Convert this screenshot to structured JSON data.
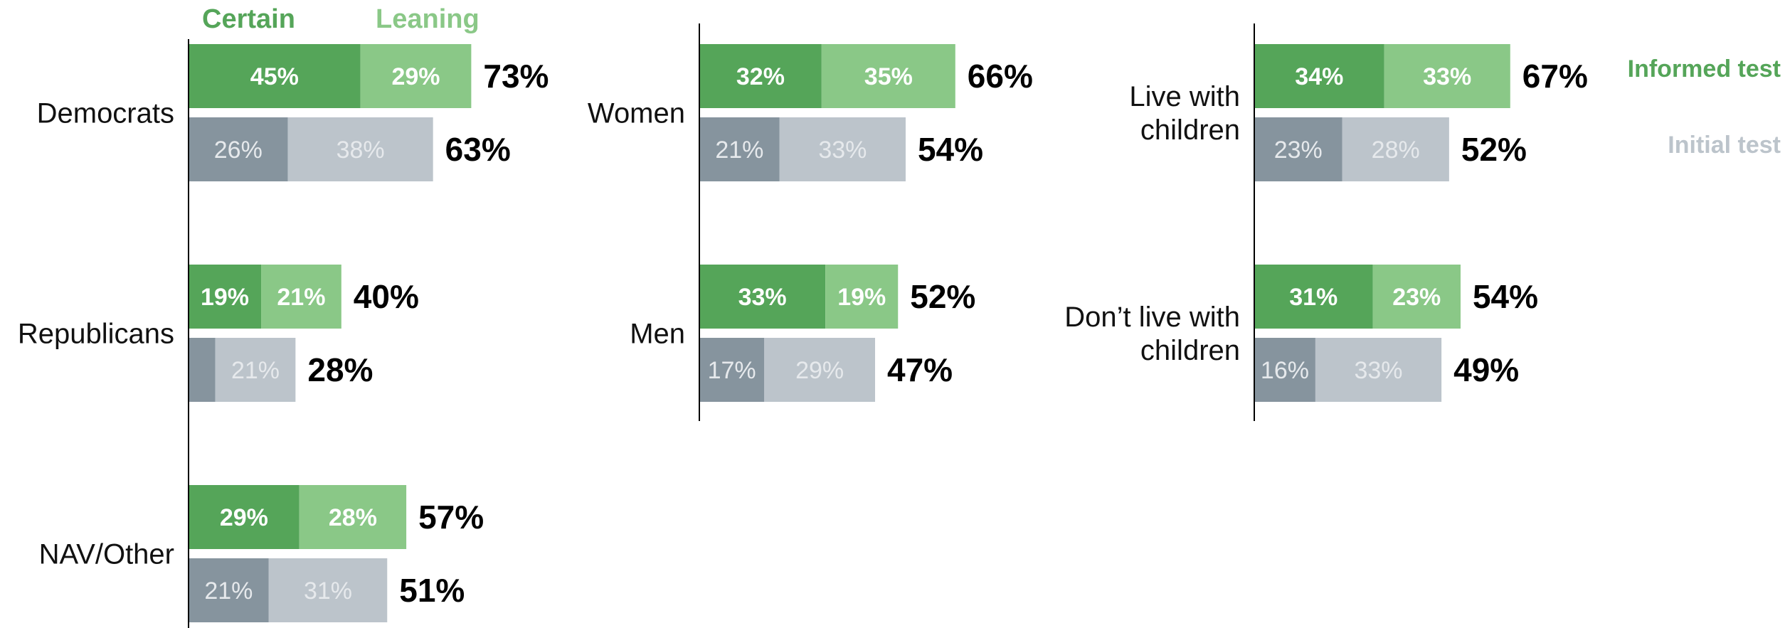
{
  "legend": {
    "certain": "Certain",
    "leaning": "Leaning",
    "informed": "Informed test",
    "initial": "Initial test"
  },
  "colors": {
    "certain": "#55a559",
    "leaning": "#8ac887",
    "initial_certain": "#86949e",
    "initial_leaning": "#bcc4cb",
    "informed_label": "#55a559",
    "initial_label": "#bcc4cb",
    "axis": "#000000"
  },
  "chart_data": {
    "type": "bar",
    "orientation": "horizontal",
    "stacked": true,
    "xlim": [
      0,
      100
    ],
    "series_names": [
      "Certain",
      "Leaning"
    ],
    "tests": [
      "Informed test",
      "Initial test"
    ],
    "panels": [
      {
        "groups": [
          {
            "label": "Democrats",
            "informed": {
              "certain": 45,
              "leaning": 29,
              "total": "73%",
              "certain_label": "45%",
              "leaning_label": "29%"
            },
            "initial": {
              "certain": 26,
              "leaning": 38,
              "total": "63%",
              "certain_label": "26%",
              "leaning_label": "38%"
            }
          },
          {
            "label": "Republicans",
            "informed": {
              "certain": 19,
              "leaning": 21,
              "total": "40%",
              "certain_label": "19%",
              "leaning_label": "21%"
            },
            "initial": {
              "certain": 7,
              "leaning": 21,
              "total": "28%",
              "certain_label": "",
              "leaning_label": "21%"
            }
          },
          {
            "label": "NAV/Other",
            "informed": {
              "certain": 29,
              "leaning": 28,
              "total": "57%",
              "certain_label": "29%",
              "leaning_label": "28%"
            },
            "initial": {
              "certain": 21,
              "leaning": 31,
              "total": "51%",
              "certain_label": "21%",
              "leaning_label": "31%"
            }
          }
        ]
      },
      {
        "groups": [
          {
            "label": "Women",
            "informed": {
              "certain": 32,
              "leaning": 35,
              "total": "66%",
              "certain_label": "32%",
              "leaning_label": "35%"
            },
            "initial": {
              "certain": 21,
              "leaning": 33,
              "total": "54%",
              "certain_label": "21%",
              "leaning_label": "33%"
            }
          },
          {
            "label": "Men",
            "informed": {
              "certain": 33,
              "leaning": 19,
              "total": "52%",
              "certain_label": "33%",
              "leaning_label": "19%"
            },
            "initial": {
              "certain": 17,
              "leaning": 29,
              "total": "47%",
              "certain_label": "17%",
              "leaning_label": "29%"
            }
          }
        ]
      },
      {
        "groups": [
          {
            "label": "Live with\nchildren",
            "informed": {
              "certain": 34,
              "leaning": 33,
              "total": "67%",
              "certain_label": "34%",
              "leaning_label": "33%"
            },
            "initial": {
              "certain": 23,
              "leaning": 28,
              "total": "52%",
              "certain_label": "23%",
              "leaning_label": "28%"
            }
          },
          {
            "label": "Don’t live with\nchildren",
            "informed": {
              "certain": 31,
              "leaning": 23,
              "total": "54%",
              "certain_label": "31%",
              "leaning_label": "23%"
            },
            "initial": {
              "certain": 16,
              "leaning": 33,
              "total": "49%",
              "certain_label": "16%",
              "leaning_label": "33%"
            }
          }
        ]
      }
    ]
  }
}
